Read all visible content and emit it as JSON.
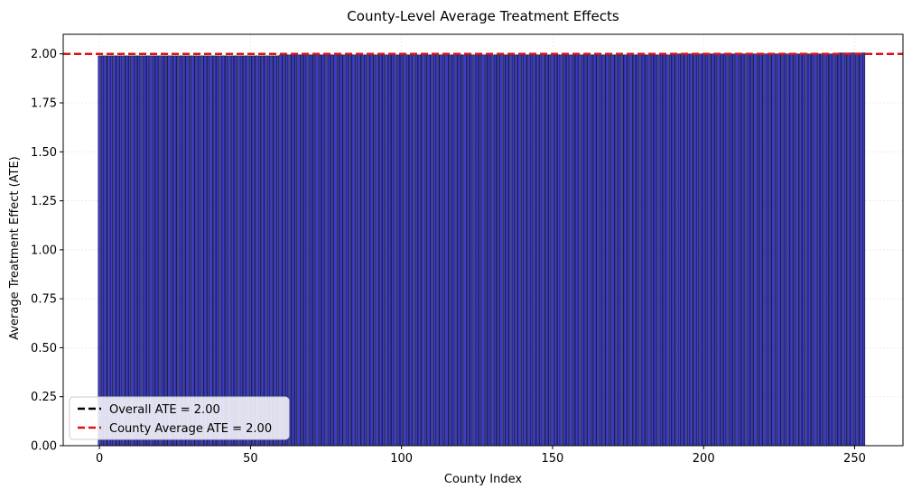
{
  "chart_data": {
    "type": "bar",
    "title": "County-Level Average Treatment Effects",
    "xlabel": "County Index",
    "ylabel": "Average Treatment Effect (ATE)",
    "xlim": [
      -12,
      266
    ],
    "ylim": [
      0,
      2.1
    ],
    "x_ticks": [
      0,
      50,
      100,
      150,
      200,
      250
    ],
    "y_ticks": [
      0.0,
      0.25,
      0.5,
      0.75,
      1.0,
      1.25,
      1.5,
      1.75,
      2.0
    ],
    "x_tick_labels": [
      "0",
      "50",
      "100",
      "150",
      "200",
      "250"
    ],
    "y_tick_labels": [
      "0.00",
      "0.25",
      "0.50",
      "0.75",
      "1.00",
      "1.25",
      "1.50",
      "1.75",
      "2.00"
    ],
    "grid": true,
    "legend_position": "lower-left",
    "bar_color": "#3b3bd0",
    "bar_edge_color": "#000000",
    "bar_count": 254,
    "values_from_index": [
      {
        "start": 0,
        "end": 59,
        "value": 1.99
      },
      {
        "start": 60,
        "end": 189,
        "value": 1.995
      },
      {
        "start": 190,
        "end": 244,
        "value": 2.0
      },
      {
        "start": 245,
        "end": 253,
        "value": 2.005
      }
    ],
    "reference_lines": [
      {
        "name": "Overall ATE = 2.00",
        "value": 2.0,
        "color": "#000000",
        "style": "dashed"
      },
      {
        "name": "County Average ATE = 2.00",
        "value": 2.0,
        "color": "#dd1111",
        "style": "dashed"
      }
    ]
  }
}
